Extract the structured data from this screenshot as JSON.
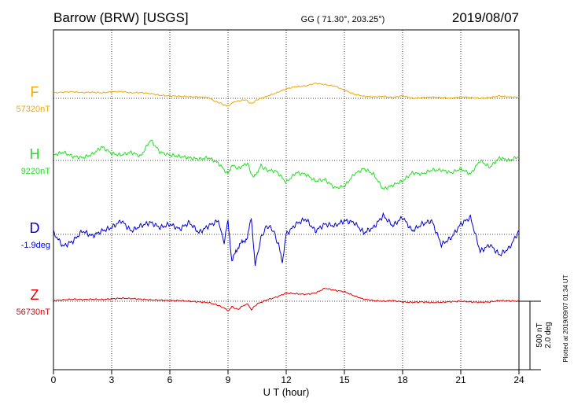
{
  "header": {
    "station": "Barrow (BRW)  [USGS]",
    "coords": "GG ( 71.30°, 203.25°)",
    "date": "2019/08/07"
  },
  "side_note": "Plotted at 2019/09/07 01:34  UT",
  "scale_label": {
    "line1": "500 nT",
    "line2": "2.0 deg"
  },
  "chart_data": {
    "type": "line",
    "xlabel": "U T (hour)",
    "xlim": [
      0,
      24
    ],
    "xticks": [
      0,
      3,
      6,
      9,
      12,
      15,
      18,
      21,
      24
    ],
    "grid": true,
    "series": [
      {
        "name": "F",
        "base_label": "57320nT",
        "color": "#f0a800",
        "units": "nT",
        "x": [
          0,
          0.5,
          1,
          1.5,
          2,
          2.5,
          3,
          3.5,
          4,
          4.5,
          5,
          5.5,
          6,
          6.5,
          7,
          7.5,
          8,
          8.3,
          8.6,
          8.9,
          9.1,
          9.3,
          9.6,
          9.9,
          10.2,
          10.5,
          11,
          11.5,
          12,
          12.5,
          13,
          13.5,
          14,
          14.5,
          15,
          15.5,
          16,
          16.5,
          17,
          17.5,
          18,
          18.5,
          19,
          19.5,
          20,
          20.5,
          21,
          21.5,
          22,
          22.5,
          23,
          23.5,
          24
        ],
        "values": [
          40,
          45,
          48,
          42,
          45,
          40,
          48,
          50,
          40,
          42,
          35,
          22,
          18,
          15,
          12,
          10,
          5,
          -20,
          -35,
          -55,
          -50,
          -25,
          -18,
          -10,
          -40,
          -10,
          15,
          40,
          70,
          85,
          90,
          110,
          100,
          90,
          60,
          30,
          15,
          10,
          15,
          5,
          20,
          0,
          5,
          8,
          5,
          0,
          10,
          5,
          0,
          5,
          18,
          10,
          8
        ]
      },
      {
        "name": "H",
        "base_label": "9220nT",
        "color": "#22e022",
        "units": "nT",
        "x": [
          0,
          0.5,
          1,
          1.5,
          2,
          2.5,
          3,
          3.5,
          4,
          4.5,
          5,
          5.5,
          6,
          6.5,
          7,
          7.5,
          8,
          8.5,
          9,
          9.2,
          9.5,
          10,
          10.3,
          10.7,
          11,
          11.5,
          12,
          12.5,
          13,
          13.5,
          14,
          14.5,
          15,
          15.5,
          16,
          16.5,
          17,
          17.5,
          18,
          18.5,
          19,
          19.5,
          20,
          20.5,
          21,
          21.5,
          22,
          22.5,
          23,
          23.5,
          24
        ],
        "values": [
          40,
          60,
          30,
          20,
          45,
          100,
          50,
          40,
          60,
          30,
          150,
          60,
          40,
          30,
          20,
          10,
          20,
          -20,
          -100,
          -30,
          -60,
          -20,
          -130,
          -40,
          -70,
          -80,
          -160,
          -90,
          -100,
          -150,
          -140,
          -200,
          -190,
          -100,
          -60,
          -100,
          -210,
          -180,
          -150,
          -90,
          -100,
          -70,
          -70,
          -90,
          -60,
          -100,
          0,
          -50,
          20,
          0,
          30
        ]
      },
      {
        "name": "D",
        "base_label": "-1.9deg",
        "color": "#0000d0",
        "units": "deg",
        "x": [
          0,
          0.5,
          1,
          1.5,
          2,
          2.5,
          3,
          3.5,
          4,
          4.5,
          5,
          5.5,
          6,
          6.5,
          7,
          7.5,
          8,
          8.5,
          8.8,
          9,
          9.2,
          9.4,
          9.6,
          10,
          10.2,
          10.4,
          10.7,
          11,
          11.3,
          11.6,
          11.8,
          12,
          12.5,
          13,
          13.5,
          14,
          14.5,
          15,
          15.5,
          16,
          16.5,
          17,
          17.5,
          18,
          18.5,
          19,
          19.5,
          20,
          20.5,
          21,
          21.5,
          22,
          22.5,
          23,
          23.5,
          24
        ],
        "values": [
          0.05,
          -0.35,
          -0.2,
          0.1,
          -0.05,
          0.1,
          0.2,
          0.4,
          0.1,
          0.25,
          0.35,
          0.2,
          0.3,
          0.15,
          0.35,
          0.05,
          0.25,
          0.4,
          -0.25,
          0.4,
          -0.8,
          -0.5,
          -0.3,
          -0.1,
          0.5,
          -0.9,
          -0.1,
          0.25,
          0.15,
          -0.3,
          -0.8,
          0.0,
          0.3,
          0.45,
          0.1,
          0.3,
          0.25,
          0.4,
          0.35,
          0.05,
          0.2,
          0.55,
          0.25,
          0.5,
          0.1,
          0.3,
          0.4,
          -0.3,
          -0.1,
          0.3,
          0.5,
          -0.5,
          -0.3,
          -0.6,
          -0.4,
          0.1
        ]
      },
      {
        "name": "Z",
        "base_label": "56730nT",
        "color": "#e00000",
        "units": "nT",
        "x": [
          0,
          0.5,
          1,
          1.5,
          2,
          2.5,
          3,
          3.5,
          4,
          4.5,
          5,
          5.5,
          6,
          6.5,
          7,
          7.5,
          8,
          8.5,
          8.8,
          9,
          9.2,
          9.5,
          9.8,
          10,
          10.2,
          10.5,
          11,
          11.5,
          12,
          12.5,
          13,
          13.5,
          14,
          14.5,
          15,
          15.5,
          16,
          16.5,
          17,
          17.5,
          18,
          18.5,
          19,
          19.5,
          20,
          20.5,
          21,
          21.5,
          22,
          22.5,
          23,
          23.5,
          24
        ],
        "values": [
          5,
          10,
          15,
          12,
          15,
          12,
          18,
          22,
          20,
          15,
          10,
          8,
          5,
          5,
          0,
          -5,
          -10,
          -30,
          -50,
          -70,
          -40,
          -60,
          -30,
          -20,
          -60,
          -20,
          10,
          30,
          60,
          55,
          50,
          60,
          95,
          80,
          70,
          40,
          15,
          5,
          0,
          5,
          -5,
          -8,
          -5,
          -10,
          -8,
          -3,
          0,
          -5,
          -8,
          -5,
          5,
          3,
          0
        ]
      }
    ]
  }
}
